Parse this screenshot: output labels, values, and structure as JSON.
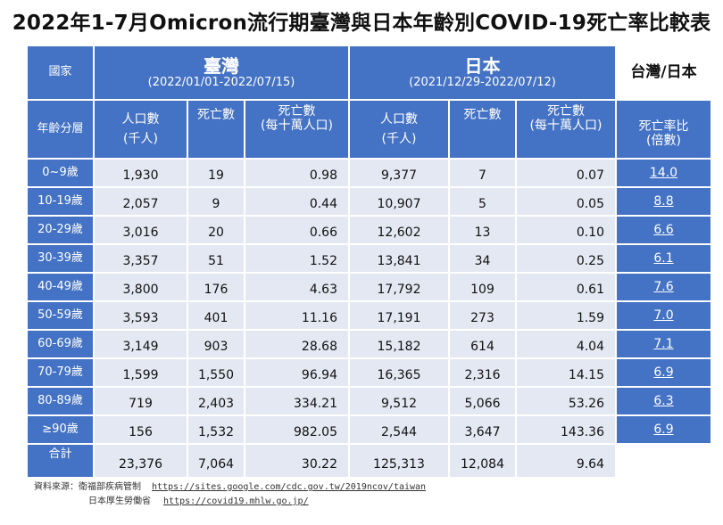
{
  "title": "2022年1-7月Omicron流行期臺灣與日本年齡別COVID-19死亡率比較表",
  "headers": {
    "country": "國家",
    "age_group": "年齡分層",
    "taiwan": "臺灣",
    "taiwan_period": "(2022/01/01-2022/07/15)",
    "japan": "日本",
    "japan_period": "(2021/12/29-2022/07/12)",
    "ratio_label": "台灣/日本",
    "population": "人口數",
    "thousand": "(千人)",
    "deaths": "死亡數",
    "deaths_rate": "死亡數",
    "per100k": "(每十萬人口)",
    "ratio": "死亡率比",
    "times": "(倍數)"
  },
  "rows": [
    {
      "age": "0~9歲",
      "tw_pop": "1,930",
      "tw_deaths": "19",
      "tw_rate": "0.98",
      "jp_pop": "9,377",
      "jp_deaths": "7",
      "jp_rate": "0.07",
      "ratio": "14.0"
    },
    {
      "age": "10-19歲",
      "tw_pop": "2,057",
      "tw_deaths": "9",
      "tw_rate": "0.44",
      "jp_pop": "10,907",
      "jp_deaths": "5",
      "jp_rate": "0.05",
      "ratio": "8.8"
    },
    {
      "age": "20-29歲",
      "tw_pop": "3,016",
      "tw_deaths": "20",
      "tw_rate": "0.66",
      "jp_pop": "12,602",
      "jp_deaths": "13",
      "jp_rate": "0.10",
      "ratio": "6.6"
    },
    {
      "age": "30-39歲",
      "tw_pop": "3,357",
      "tw_deaths": "51",
      "tw_rate": "1.52",
      "jp_pop": "13,841",
      "jp_deaths": "34",
      "jp_rate": "0.25",
      "ratio": "6.1"
    },
    {
      "age": "40-49歲",
      "tw_pop": "3,800",
      "tw_deaths": "176",
      "tw_rate": "4.63",
      "jp_pop": "17,792",
      "jp_deaths": "109",
      "jp_rate": "0.61",
      "ratio": "7.6"
    },
    {
      "age": "50-59歲",
      "tw_pop": "3,593",
      "tw_deaths": "401",
      "tw_rate": "11.16",
      "jp_pop": "17,191",
      "jp_deaths": "273",
      "jp_rate": "1.59",
      "ratio": "7.0"
    },
    {
      "age": "60-69歲",
      "tw_pop": "3,149",
      "tw_deaths": "903",
      "tw_rate": "28.68",
      "jp_pop": "15,182",
      "jp_deaths": "614",
      "jp_rate": "4.04",
      "ratio": "7.1"
    },
    {
      "age": "70-79歲",
      "tw_pop": "1,599",
      "tw_deaths": "1,550",
      "tw_rate": "96.94",
      "jp_pop": "16,365",
      "jp_deaths": "2,316",
      "jp_rate": "14.15",
      "ratio": "6.9"
    },
    {
      "age": "80-89歲",
      "tw_pop": "719",
      "tw_deaths": "2,403",
      "tw_rate": "334.21",
      "jp_pop": "9,512",
      "jp_deaths": "5,066",
      "jp_rate": "53.26",
      "ratio": "6.3"
    },
    {
      "age": "≥90歲",
      "tw_pop": "156",
      "tw_deaths": "1,532",
      "tw_rate": "982.05",
      "jp_pop": "2,544",
      "jp_deaths": "3,647",
      "jp_rate": "143.36",
      "ratio": "6.9"
    }
  ],
  "total": {
    "label": "合計",
    "tw_pop": "23,376",
    "tw_deaths": "7,064",
    "tw_rate": "30.22",
    "jp_pop": "125,313",
    "jp_deaths": "12,084",
    "jp_rate": "9.64"
  },
  "footer": {
    "source_label": "資料來源：衛福部疾病管制",
    "source_url": "https://sites.google.com/cdc.gov.tw/2019ncov/taiwan",
    "source2_label": "日本厚生勞働省",
    "source2_url": "https://covid19.mhlw.go.jp/"
  }
}
